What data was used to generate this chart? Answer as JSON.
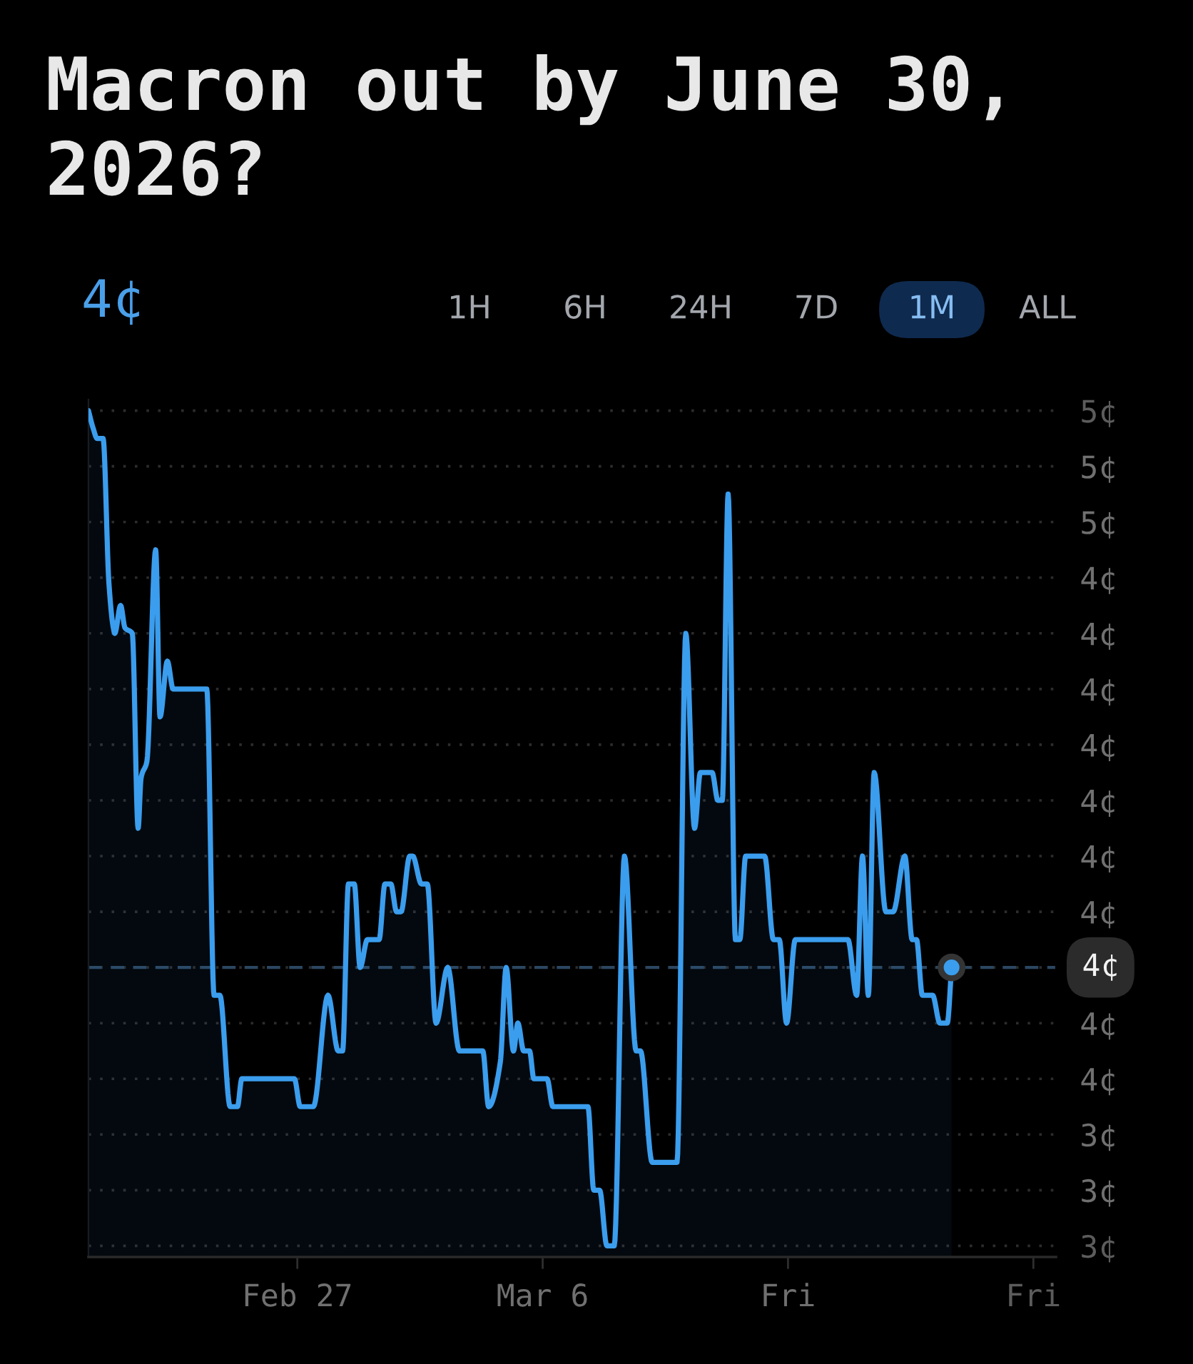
{
  "chart_data": {
    "type": "area",
    "title": "Macron out by June 30, 2026?",
    "subtitle": "4¢",
    "annotations": [
      "1H",
      "6H",
      "24H",
      "7D",
      "1M",
      "ALL"
    ],
    "x": [
      "2026-02-21T01:00",
      "2026-02-21T04:00",
      "2026-02-21T07:00",
      "2026-02-21T11:00",
      "2026-02-21T15:00",
      "2026-02-21T18:00",
      "2026-02-21T19:00",
      "2026-02-21T23:00",
      "2026-02-22T02:00",
      "2026-02-22T07:00",
      "2026-02-22T11:00",
      "2026-02-22T13:00",
      "2026-02-22T17:00",
      "2026-02-22T23:00",
      "2026-02-23T02:00",
      "2026-02-23T07:00",
      "2026-02-23T11:00",
      "2026-02-24T10:00",
      "2026-02-24T15:00",
      "2026-02-24T19:00",
      "2026-02-25T02:00",
      "2026-02-25T07:00",
      "2026-02-25T10:00",
      "2026-02-26T22:00",
      "2026-02-27T02:00",
      "2026-02-27T11:00",
      "2026-02-27T21:00",
      "2026-02-28T04:00",
      "2026-02-28T07:00",
      "2026-02-28T11:00",
      "2026-02-28T15:00",
      "2026-02-28T19:00",
      "2026-03-01T00:00",
      "2026-03-01T08:00",
      "2026-03-01T12:00",
      "2026-03-01T16:00",
      "2026-03-01T20:00",
      "2026-03-01T23:00",
      "2026-03-02T05:00",
      "2026-03-02T07:00",
      "2026-03-02T13:00",
      "2026-03-02T17:00",
      "2026-03-02T23:00",
      "2026-03-03T07:00",
      "2026-03-03T15:00",
      "2026-03-04T07:00",
      "2026-03-04T11:00",
      "2026-03-04T19:00",
      "2026-03-04T23:00",
      "2026-03-05T04:00",
      "2026-03-05T07:00",
      "2026-03-05T11:00",
      "2026-03-05T15:00",
      "2026-03-05T18:00",
      "2026-03-06T03:00",
      "2026-03-06T07:00",
      "2026-03-07T07:00",
      "2026-03-07T11:00",
      "2026-03-07T15:00",
      "2026-03-07T20:00",
      "2026-03-08T01:00",
      "2026-03-08T08:00",
      "2026-03-08T16:00",
      "2026-03-08T19:00",
      "2026-03-09T03:00",
      "2026-03-09T20:00",
      "2026-03-10T02:00",
      "2026-03-10T08:00",
      "2026-03-10T12:00",
      "2026-03-10T20:00",
      "2026-03-11T00:00",
      "2026-03-11T03:00",
      "2026-03-11T07:00",
      "2026-03-11T12:00",
      "2026-03-11T15:00",
      "2026-03-11T19:00",
      "2026-03-12T08:00",
      "2026-03-12T14:00",
      "2026-03-12T18:00",
      "2026-03-12T23:00",
      "2026-03-13T05:00",
      "2026-03-14T17:00",
      "2026-03-14T23:00",
      "2026-03-15T03:00",
      "2026-03-15T07:00",
      "2026-03-15T11:00",
      "2026-03-15T19:00",
      "2026-03-16T00:00",
      "2026-03-16T08:00",
      "2026-03-16T13:00",
      "2026-03-16T16:00",
      "2026-03-16T20:00",
      "2026-03-17T03:00",
      "2026-03-17T08:00",
      "2026-03-17T13:00",
      "2026-03-17T16:00"
    ],
    "series": [
      {
        "color": "#3b9ded",
        "values": [
          4.7,
          4.67,
          4.65,
          4.65,
          4.39,
          4.31,
          4.3,
          4.35,
          4.31,
          4.3,
          3.95,
          4.04,
          4.07,
          4.45,
          4.15,
          4.25,
          4.2,
          4.2,
          3.65,
          3.65,
          3.45,
          3.45,
          3.5,
          3.5,
          3.45,
          3.45,
          3.65,
          3.55,
          3.55,
          3.85,
          3.85,
          3.7,
          3.75,
          3.75,
          3.85,
          3.85,
          3.8,
          3.8,
          3.9,
          3.9,
          3.85,
          3.85,
          3.6,
          3.7,
          3.55,
          3.55,
          3.45,
          3.53,
          3.7,
          3.55,
          3.6,
          3.55,
          3.55,
          3.5,
          3.5,
          3.45,
          3.45,
          3.3,
          3.3,
          3.2,
          3.2,
          3.9,
          3.55,
          3.55,
          3.35,
          3.35,
          4.3,
          3.95,
          4.05,
          4.05,
          4.0,
          4.0,
          4.55,
          3.75,
          3.75,
          3.9,
          3.9,
          3.75,
          3.75,
          3.6,
          3.75,
          3.75,
          3.65,
          3.9,
          3.65,
          4.05,
          3.8,
          3.8,
          3.9,
          3.75,
          3.75,
          3.65,
          3.65,
          3.6,
          3.6,
          3.7
        ]
      }
    ],
    "xlim": [
      "2026-02-21T01:00",
      "2026-03-20T15:30"
    ],
    "xticks": [
      {
        "value": "2026-02-27",
        "label": "Feb 27"
      },
      {
        "value": "2026-03-06",
        "label": "Mar 6"
      },
      {
        "value": "2026-03-13",
        "label": "Fri"
      },
      {
        "value": "2026-03-20",
        "label": "Fri"
      }
    ],
    "ylim": [
      3.18,
      4.72
    ],
    "yticks": [
      {
        "value": 3.2,
        "label": "3¢"
      },
      {
        "value": 3.3,
        "label": "3¢"
      },
      {
        "value": 3.4,
        "label": "3¢"
      },
      {
        "value": 3.5,
        "label": "4¢"
      },
      {
        "value": 3.6,
        "label": "4¢"
      },
      {
        "value": 3.7,
        "label": null
      },
      {
        "value": 3.8,
        "label": "4¢"
      },
      {
        "value": 3.9,
        "label": "4¢"
      },
      {
        "value": 4.0,
        "label": "4¢"
      },
      {
        "value": 4.1,
        "label": "4¢"
      },
      {
        "value": 4.2,
        "label": "4¢"
      },
      {
        "value": 4.3,
        "label": "4¢"
      },
      {
        "value": 4.4,
        "label": "4¢"
      },
      {
        "value": 4.5,
        "label": "5¢"
      },
      {
        "value": 4.6,
        "label": "5¢"
      },
      {
        "value": 4.7,
        "label": "5¢"
      }
    ],
    "ref_lines": [
      {
        "axis": "y",
        "value": 3.7,
        "label": "4¢",
        "line_style": "dashed",
        "color": "#2b4660"
      }
    ],
    "grid": "y"
  }
}
